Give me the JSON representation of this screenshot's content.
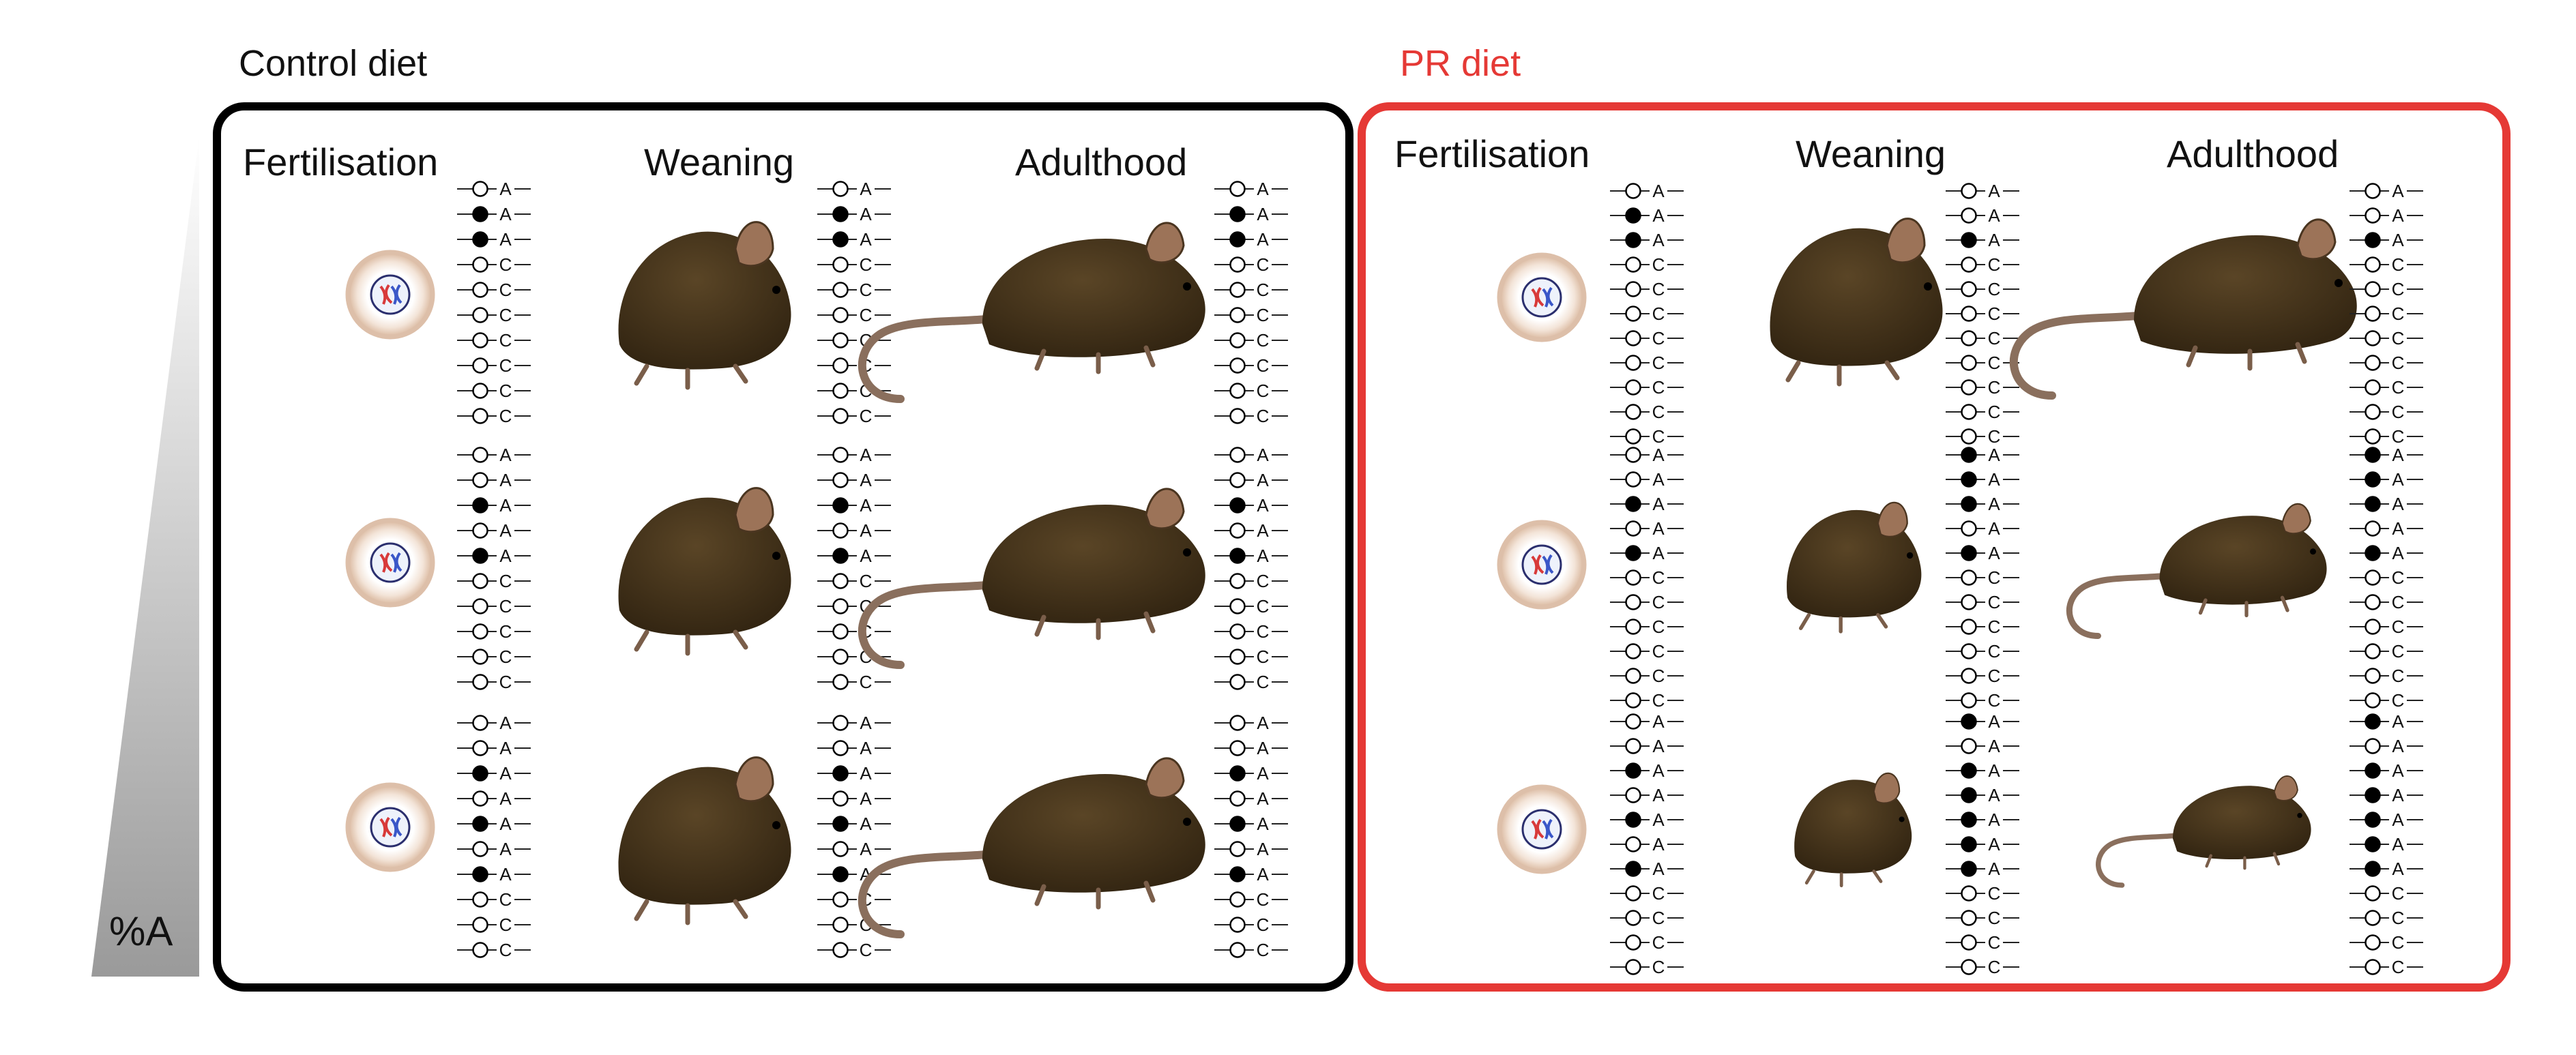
{
  "gradient_label": "%A",
  "panels": [
    {
      "title": "Control diet",
      "title_color": "#111111",
      "border_color": "#000000",
      "stages": [
        "Fertilisation",
        "Weaning",
        "Adulthood"
      ],
      "rows": [
        {
          "fertilisation": "AAACCCCCCC",
          "weaning": "AAACCCCCCC",
          "adulthood": "AAACCCCCCC"
        },
        {
          "fertilisation": "AAAAACCCCC",
          "weaning": "AAAAACCCCC",
          "adulthood": "AAAAACCCCC"
        },
        {
          "fertilisation": "AAAAAAACCC",
          "weaning": "AAAAAAACCC",
          "adulthood": "AAAAAAACCC"
        }
      ],
      "methylated": [
        {
          "fertilisation": [
            1,
            2
          ],
          "weaning": [
            1,
            2
          ],
          "adulthood": [
            1,
            2
          ]
        },
        {
          "fertilisation": [
            2,
            4
          ],
          "weaning": [
            2,
            4
          ],
          "adulthood": [
            2,
            4
          ]
        },
        {
          "fertilisation": [
            2,
            4,
            6
          ],
          "weaning": [
            2,
            4,
            6
          ],
          "adulthood": [
            2,
            4,
            6
          ]
        }
      ]
    },
    {
      "title": "PR diet",
      "title_color": "#e53935",
      "border_color": "#e53935",
      "stages": [
        "Fertilisation",
        "Weaning",
        "Adulthood"
      ],
      "rows": [
        {
          "fertilisation": "AAACCCCCCCC",
          "weaning": "AAACCCCCCCC",
          "adulthood": "AAACCCCCCCC"
        },
        {
          "fertilisation": "AAAAACCCCCC",
          "weaning": "AAAAACCCCCC",
          "adulthood": "AAAAACCCCCC"
        },
        {
          "fertilisation": "AAAAAAACCCC",
          "weaning": "AAAAAAACCCC",
          "adulthood": "AAAAAAACCCC"
        }
      ],
      "methylated": [
        {
          "fertilisation": [
            1,
            2
          ],
          "weaning": [
            2
          ],
          "adulthood": [
            2
          ]
        },
        {
          "fertilisation": [
            2,
            4
          ],
          "weaning": [
            0,
            1,
            2,
            4
          ],
          "adulthood": [
            0,
            1,
            2,
            4
          ]
        },
        {
          "fertilisation": [
            2,
            4,
            6
          ],
          "weaning": [
            0,
            2,
            3,
            4,
            5,
            6
          ],
          "adulthood": [
            0,
            2,
            3,
            4,
            5,
            6
          ]
        }
      ]
    }
  ],
  "colors": {
    "mouse_body": "#3d2d18",
    "mouse_ear": "#9c7358",
    "mouse_tail": "#8a6f5d",
    "zygote_ring": "#ddbfa9",
    "chrom_red": "#d83a3a",
    "chrom_blue": "#3a57c8",
    "gradient_dark": "#9a9a9a"
  }
}
